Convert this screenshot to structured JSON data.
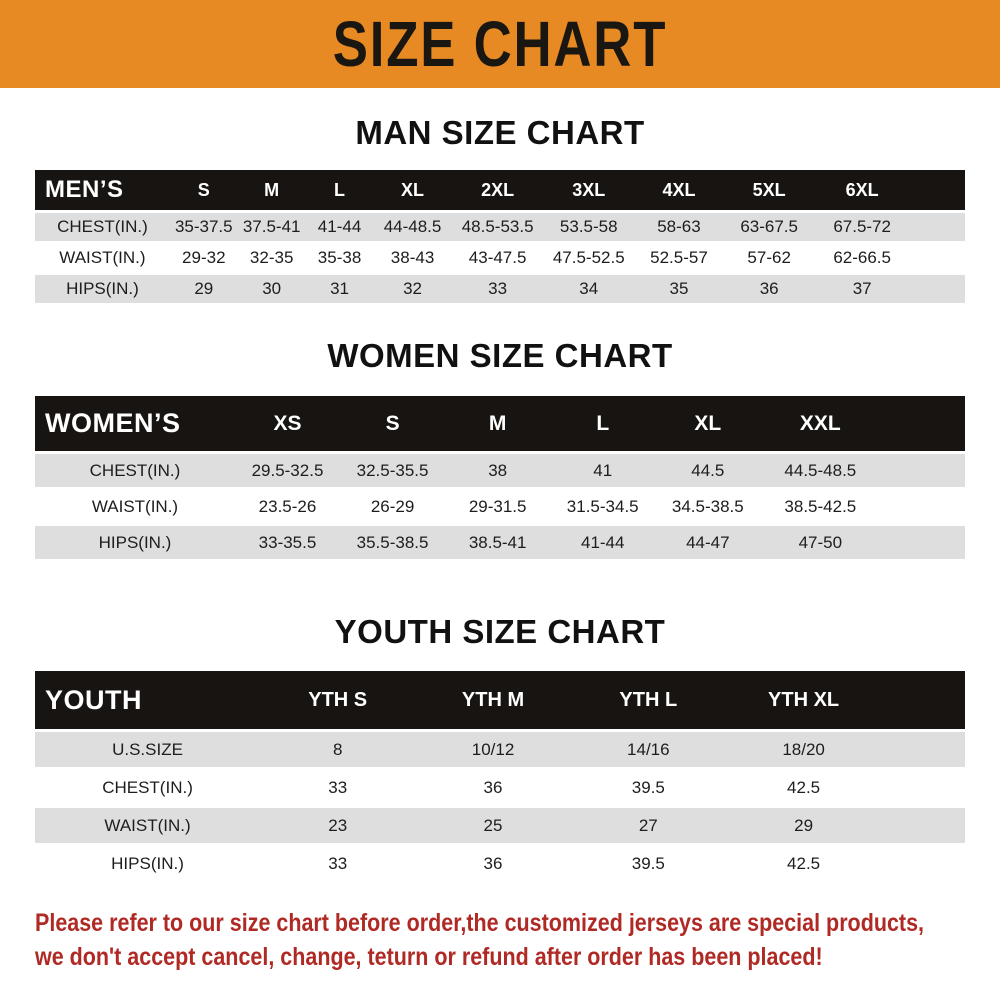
{
  "banner": {
    "title": "SIZE CHART"
  },
  "sections": [
    {
      "heading": "MAN SIZE CHART",
      "header_label": "MEN’S",
      "columns": [
        "S",
        "M",
        "L",
        "XL",
        "2XL",
        "3XL",
        "4XL",
        "5XL",
        "6XL"
      ],
      "rows": [
        {
          "label": "CHEST(IN.)",
          "values": [
            "35-37.5",
            "37.5-41",
            "41-44",
            "44-48.5",
            "48.5-53.5",
            "53.5-58",
            "58-63",
            "63-67.5",
            "67.5-72"
          ]
        },
        {
          "label": "WAIST(IN.)",
          "values": [
            "29-32",
            "32-35",
            "35-38",
            "38-43",
            "43-47.5",
            "47.5-52.5",
            "52.5-57",
            "57-62",
            "62-66.5"
          ]
        },
        {
          "label": "HIPS(IN.)",
          "values": [
            "29",
            "30",
            "31",
            "32",
            "33",
            "34",
            "35",
            "36",
            "37"
          ]
        }
      ]
    },
    {
      "heading": "WOMEN SIZE CHART",
      "header_label": "WOMEN’S",
      "columns": [
        "XS",
        "S",
        "M",
        "L",
        "XL",
        "XXL"
      ],
      "rows": [
        {
          "label": "CHEST(IN.)",
          "values": [
            "29.5-32.5",
            "32.5-35.5",
            "38",
            "41",
            "44.5",
            "44.5-48.5"
          ]
        },
        {
          "label": "WAIST(IN.)",
          "values": [
            "23.5-26",
            "26-29",
            "29-31.5",
            "31.5-34.5",
            "34.5-38.5",
            "38.5-42.5"
          ]
        },
        {
          "label": "HIPS(IN.)",
          "values": [
            "33-35.5",
            "35.5-38.5",
            "38.5-41",
            "41-44",
            "44-47",
            "47-50"
          ]
        }
      ]
    },
    {
      "heading": "YOUTH SIZE CHART",
      "header_label": "YOUTH",
      "columns": [
        "YTH S",
        "YTH M",
        "YTH L",
        "YTH XL"
      ],
      "rows": [
        {
          "label": "U.S.SIZE",
          "values": [
            "8",
            "10/12",
            "14/16",
            "18/20"
          ]
        },
        {
          "label": "CHEST(IN.)",
          "values": [
            "33",
            "36",
            "39.5",
            "42.5"
          ]
        },
        {
          "label": "WAIST(IN.)",
          "values": [
            "23",
            "25",
            "27",
            "29"
          ]
        },
        {
          "label": "HIPS(IN.)",
          "values": [
            "33",
            "36",
            "39.5",
            "42.5"
          ]
        }
      ]
    }
  ],
  "footnote": {
    "line1": "Please refer to our size chart before order,the customized jerseys are special products,",
    "line2": "we don't accept cancel, change, teturn or refund after order has been placed!"
  },
  "colors": {
    "banner_bg": "#E88A23",
    "banner_text": "#1A1612",
    "table_header_bg": "#171411",
    "table_header_text": "#FFFFFF",
    "stripe_row_bg": "#DEDEDE",
    "body_text": "#1D1D1D",
    "footnote_red": "#B02A25",
    "page_bg": "#FFFFFF"
  }
}
